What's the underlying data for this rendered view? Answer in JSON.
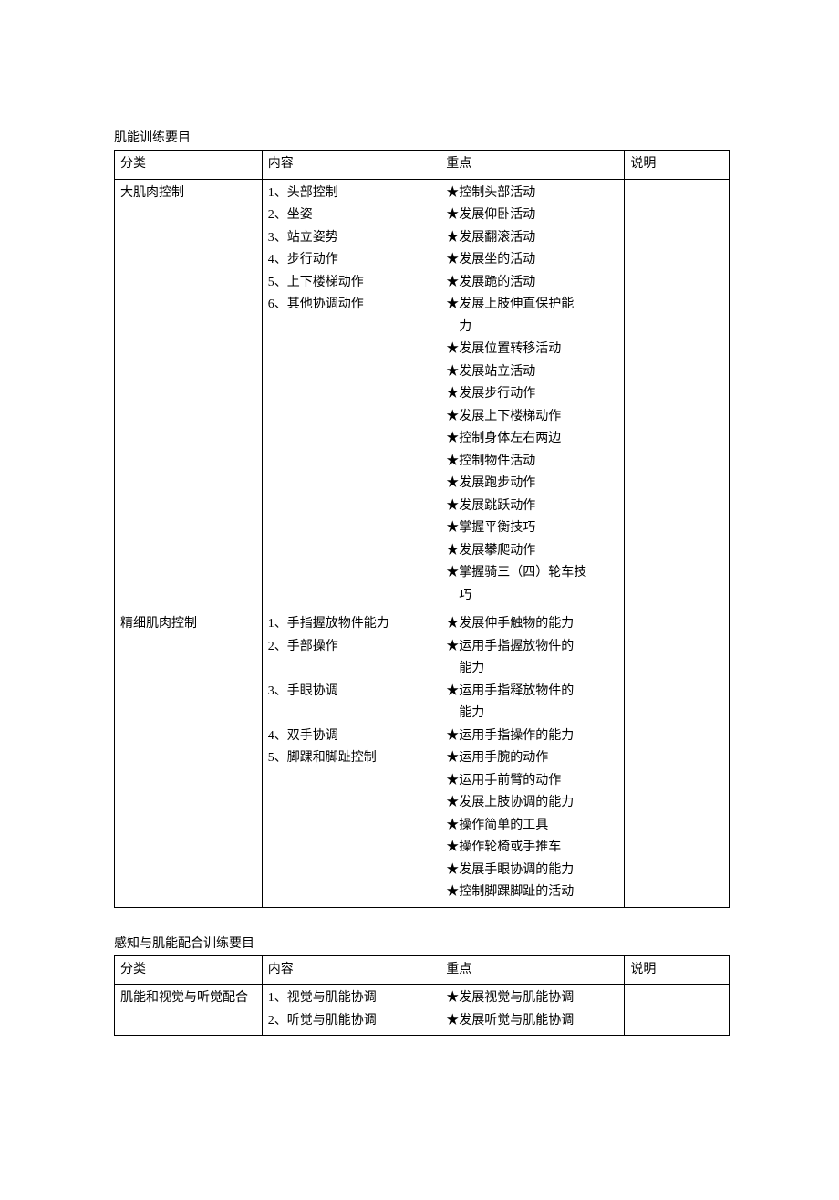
{
  "page": {
    "background_color": "#ffffff",
    "text_color": "#000000",
    "font_family": "SimSun",
    "base_fontsize": 14,
    "border_color": "#000000"
  },
  "table1": {
    "title": "肌能训练要目",
    "headers": {
      "category": "分类",
      "content": "内容",
      "focus": "重点",
      "note": "说明"
    },
    "rows": [
      {
        "category": "大肌肉控制",
        "content": "1、头部控制\n2、坐姿\n3、站立姿势\n4、步行动作\n5、上下楼梯动作\n6、其他协调动作",
        "focus": "★控制头部活动\n★发展仰卧活动\n★发展翻滚活动\n★发展坐的活动\n★发展跪的活动\n★发展上肢伸直保护能\n　力\n★发展位置转移活动\n★发展站立活动\n★发展步行动作\n★发展上下楼梯动作\n★控制身体左右两边\n★控制物件活动\n★发展跑步动作\n★发展跳跃动作\n★掌握平衡技巧\n★发展攀爬动作\n★掌握骑三（四）轮车技\n　巧",
        "note": ""
      },
      {
        "category": "精细肌肉控制",
        "content": "1、手指握放物件能力\n2、手部操作\n\n3、手眼协调\n\n4、双手协调\n5、脚踝和脚趾控制",
        "focus": "★发展伸手触物的能力\n★运用手指握放物件的\n　能力\n★运用手指释放物件的\n　能力\n★运用手指操作的能力\n★运用手腕的动作\n★运用手前臂的动作\n★发展上肢协调的能力\n★操作简单的工具\n★操作轮椅或手推车\n★发展手眼协调的能力\n★控制脚踝脚趾的活动",
        "note": ""
      }
    ]
  },
  "table2": {
    "title": "感知与肌能配合训练要目",
    "headers": {
      "category": "分类",
      "content": "内容",
      "focus": "重点",
      "note": "说明"
    },
    "rows": [
      {
        "category": "肌能和视觉与听觉配合",
        "content": "1、视觉与肌能协调\n2、听觉与肌能协调",
        "focus": "★发展视觉与肌能协调\n★发展听觉与肌能协调",
        "note": ""
      }
    ]
  }
}
